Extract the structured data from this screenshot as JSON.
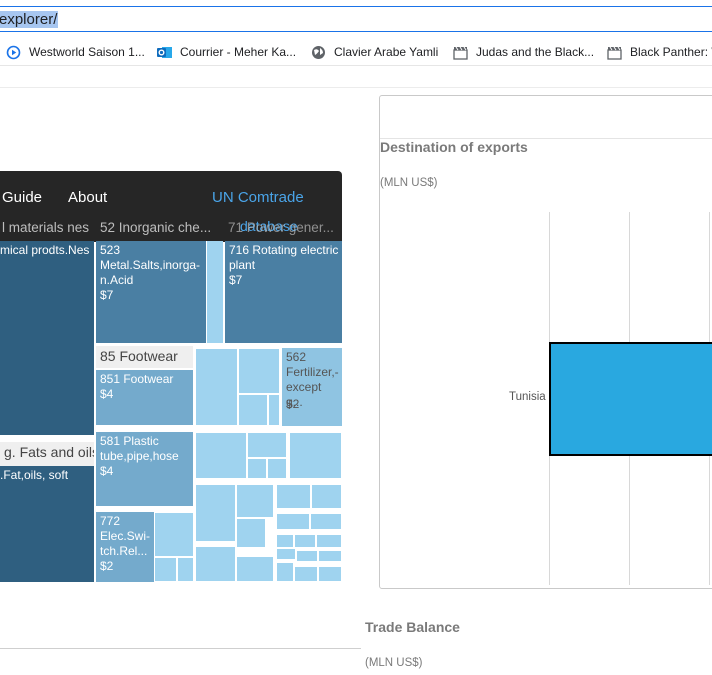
{
  "browser": {
    "url_text": "explorer/",
    "bookmarks": [
      {
        "label": "Westworld Saison 1...",
        "icon": "play-circle-icon",
        "color": "#1a73e8"
      },
      {
        "label": "Courrier - Meher Ka...",
        "icon": "outlook-icon",
        "color": "#0f6cbd"
      },
      {
        "label": "Clavier Arabe Yamli",
        "icon": "globe-icon",
        "color": "#5f6368"
      },
      {
        "label": "Judas and the Black...",
        "icon": "clapperboard-icon",
        "color": "#5f6368"
      },
      {
        "label": "Black Panther: W",
        "icon": "clapperboard-icon",
        "color": "#5f6368"
      }
    ]
  },
  "treemap_app": {
    "nav": {
      "guide": "Guide",
      "about": "About",
      "comtrade": "UN Comtrade",
      "database": "database"
    },
    "top_labels": [
      "l materials nes",
      "52 Inorganic che...",
      "71 Power gener..."
    ],
    "tiles": {
      "chemical": {
        "text": "mical prodts.Nes"
      },
      "inorganic": {
        "text": "523 Metal.Salts,inorga- n.Acid",
        "value": "$7"
      },
      "rotating": {
        "text": "716 Rotating electric plant",
        "value": "$7"
      },
      "footwear_header": "85 Footwear",
      "footwear": {
        "text": "851 Footwear",
        "value": "$4"
      },
      "fertilizer": {
        "text": "562 Fertilizer,- except g...",
        "value": "$2"
      },
      "fats_header": "g. Fats and oils",
      "fats": {
        "text": ".Fat,oils, soft"
      },
      "plastic": {
        "text": "581 Plastic tube,pipe,hose",
        "value": "$4"
      },
      "elec": {
        "text": "772 Elec.Swi- tch.Rel...",
        "value": "$2"
      }
    },
    "colors": {
      "dark": "#2f5f80",
      "mid": "#4a7fa3",
      "light_mid": "#74aacc",
      "light": "#9fd3ef"
    }
  },
  "exports_chart": {
    "title": "Destination of exports",
    "unit": "(MLN US$)",
    "chart_data": {
      "type": "bar",
      "orientation": "horizontal",
      "categories": [
        "Tunisia"
      ],
      "values": [
        null
      ],
      "title": "Destination of exports",
      "xlabel": "",
      "ylabel": "(MLN US$)",
      "grid": true,
      "color": "#29a8e0"
    }
  },
  "trade_balance": {
    "title": "Trade Balance",
    "unit": "(MLN US$)"
  }
}
